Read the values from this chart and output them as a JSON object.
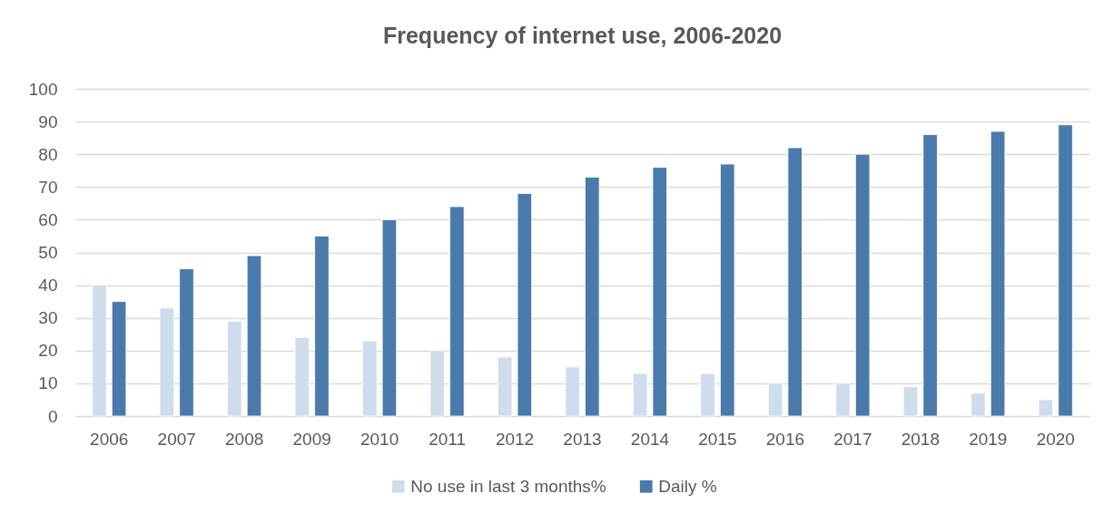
{
  "chart_data": {
    "type": "bar",
    "title": "Frequency of internet use, 2006-2020",
    "categories": [
      "2006",
      "2007",
      "2008",
      "2009",
      "2010",
      "2011",
      "2012",
      "2013",
      "2014",
      "2015",
      "2016",
      "2017",
      "2018",
      "2019",
      "2020"
    ],
    "series": [
      {
        "name": "No use in last 3 months%",
        "color": "#cfdcec",
        "values": [
          40,
          33,
          29,
          24,
          23,
          20,
          18,
          15,
          13,
          13,
          10,
          10,
          9,
          7,
          5
        ]
      },
      {
        "name": "Daily %",
        "color": "#4a7aab",
        "values": [
          35,
          45,
          49,
          55,
          60,
          64,
          68,
          73,
          76,
          77,
          82,
          80,
          86,
          87,
          89
        ]
      }
    ],
    "ylim": [
      0,
      100
    ],
    "yticks": [
      0,
      10,
      20,
      30,
      40,
      50,
      60,
      70,
      80,
      90,
      100
    ],
    "grid": "y",
    "legend": "bottom"
  }
}
